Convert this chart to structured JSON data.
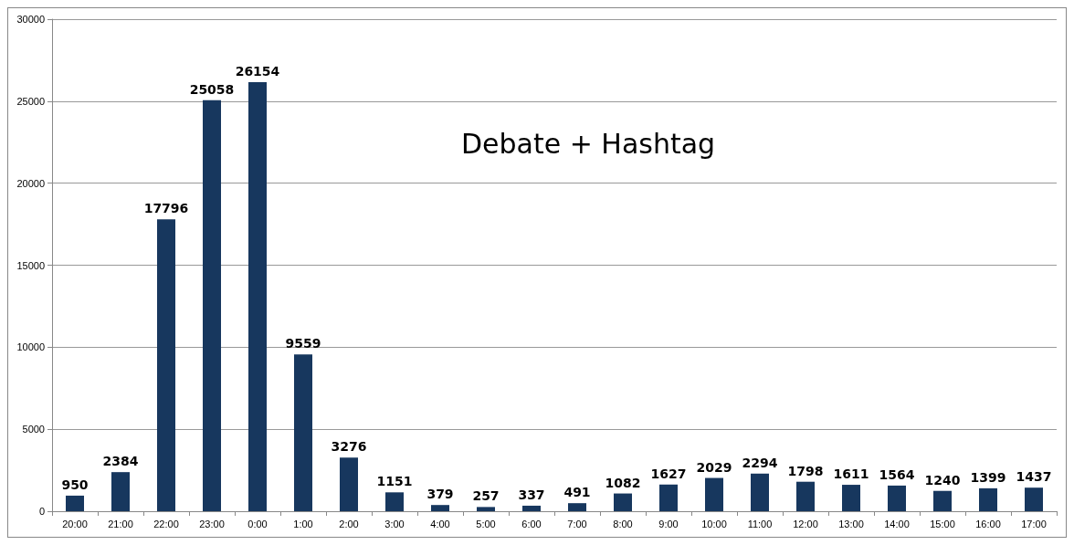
{
  "chart_data": {
    "type": "bar",
    "title": "Debate + Hashtag",
    "categories": [
      "20:00",
      "21:00",
      "22:00",
      "23:00",
      "0:00",
      "1:00",
      "2:00",
      "3:00",
      "4:00",
      "5:00",
      "6:00",
      "7:00",
      "8:00",
      "9:00",
      "10:00",
      "11:00",
      "12:00",
      "13:00",
      "14:00",
      "15:00",
      "16:00",
      "17:00"
    ],
    "values": [
      950,
      2384,
      17796,
      25058,
      26154,
      9559,
      3276,
      1151,
      379,
      257,
      337,
      491,
      1082,
      1627,
      2029,
      2294,
      1798,
      1611,
      1564,
      1240,
      1399,
      1437
    ],
    "color": "#17375e",
    "ylim": [
      0,
      30000
    ],
    "yticks": [
      0,
      5000,
      10000,
      15000,
      20000,
      25000,
      30000
    ],
    "grid": "y",
    "data_labels": true
  }
}
